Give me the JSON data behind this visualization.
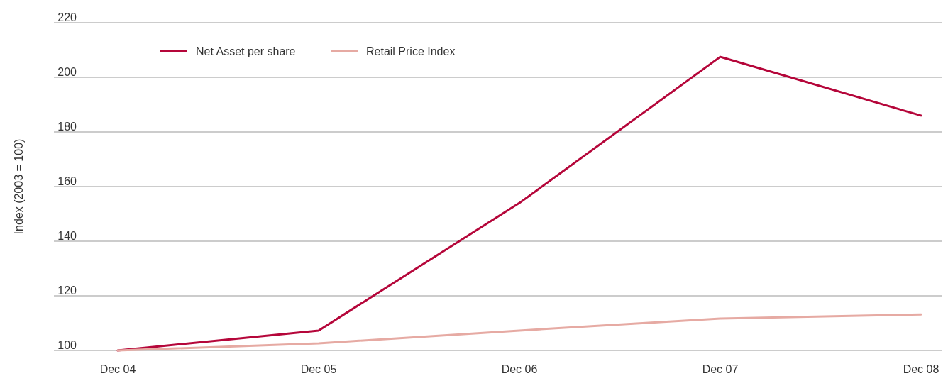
{
  "chart_data": {
    "type": "line",
    "ylabel": "Index (2003 = 100)",
    "categories": [
      "Dec 04",
      "Dec 05",
      "Dec 06",
      "Dec 07",
      "Dec 08"
    ],
    "series": [
      {
        "name": "Net Asset per share",
        "color": "#b5063a",
        "values": [
          100,
          107.3,
          154,
          207.5,
          186
        ]
      },
      {
        "name": "Retail Price Index",
        "color": "#e6aaa3",
        "values": [
          100,
          102.6,
          107.3,
          111.7,
          113.2
        ]
      }
    ],
    "ylim": [
      100,
      220
    ],
    "yticks": [
      100,
      120,
      140,
      160,
      180,
      200,
      220
    ],
    "grid": "y",
    "legend": "top left",
    "marker": "none",
    "line_style": "solid"
  }
}
